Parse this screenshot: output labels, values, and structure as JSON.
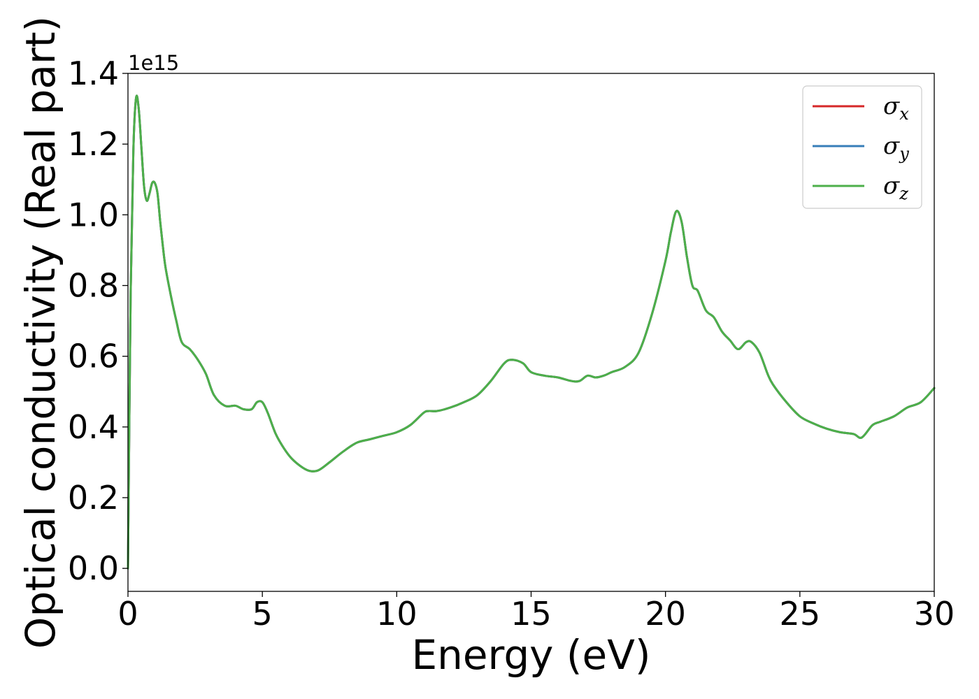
{
  "chart_data": {
    "type": "line",
    "title": "",
    "xlabel": "Energy (eV)",
    "ylabel": "Optical conductivity (Real part)",
    "y_offset_label": "1e15",
    "xlim": [
      0,
      30
    ],
    "ylim": [
      -0.065,
      1.4
    ],
    "xticks": [
      0,
      5,
      10,
      15,
      20,
      25,
      30
    ],
    "xtick_labels": [
      "0",
      "5",
      "10",
      "15",
      "20",
      "25",
      "30"
    ],
    "yticks": [
      0.0,
      0.2,
      0.4,
      0.6,
      0.8,
      1.0,
      1.2,
      1.4
    ],
    "ytick_labels": [
      "0.0",
      "0.2",
      "0.4",
      "0.6",
      "0.8",
      "1.0",
      "1.2",
      "1.4"
    ],
    "grid": false,
    "legend_position": "top-right",
    "series": [
      {
        "name": "σ",
        "subscript": "x",
        "color": "#d62728",
        "x": [
          0,
          0.1,
          0.2,
          0.3,
          0.4,
          0.5,
          0.6,
          0.7,
          0.8,
          0.9,
          1.0,
          1.1,
          1.2,
          1.3,
          1.4,
          1.6,
          1.8,
          2.0,
          2.3,
          2.6,
          2.9,
          3.2,
          3.6,
          4.0,
          4.3,
          4.6,
          4.8,
          5.0,
          5.2,
          5.5,
          5.8,
          6.1,
          6.5,
          6.8,
          7.1,
          7.5,
          8.0,
          8.5,
          9.0,
          9.5,
          10.0,
          10.5,
          11.0,
          11.2,
          11.5,
          12.0,
          12.5,
          13.0,
          13.5,
          14.0,
          14.3,
          14.7,
          15.0,
          15.5,
          16.0,
          16.5,
          16.8,
          17.1,
          17.4,
          17.7,
          18.0,
          18.5,
          19.0,
          19.5,
          20.0,
          20.2,
          20.4,
          20.6,
          20.8,
          21.0,
          21.2,
          21.5,
          21.8,
          22.1,
          22.4,
          22.7,
          23.0,
          23.2,
          23.5,
          23.8,
          24.0,
          24.5,
          25.0,
          25.5,
          26.0,
          26.5,
          27.0,
          27.3,
          27.7,
          28.0,
          28.5,
          29.0,
          29.5,
          30.0
        ],
        "y": [
          0.0,
          0.78,
          1.18,
          1.33,
          1.3,
          1.19,
          1.08,
          1.04,
          1.06,
          1.09,
          1.09,
          1.06,
          0.98,
          0.91,
          0.85,
          0.77,
          0.7,
          0.64,
          0.62,
          0.59,
          0.55,
          0.49,
          0.46,
          0.46,
          0.45,
          0.45,
          0.47,
          0.47,
          0.44,
          0.38,
          0.34,
          0.31,
          0.285,
          0.275,
          0.278,
          0.3,
          0.33,
          0.355,
          0.365,
          0.375,
          0.385,
          0.405,
          0.44,
          0.445,
          0.445,
          0.455,
          0.47,
          0.49,
          0.53,
          0.58,
          0.59,
          0.58,
          0.555,
          0.545,
          0.54,
          0.53,
          0.53,
          0.545,
          0.54,
          0.545,
          0.555,
          0.57,
          0.61,
          0.72,
          0.87,
          0.95,
          1.01,
          0.98,
          0.88,
          0.8,
          0.785,
          0.73,
          0.71,
          0.67,
          0.645,
          0.62,
          0.64,
          0.64,
          0.61,
          0.55,
          0.52,
          0.47,
          0.43,
          0.41,
          0.395,
          0.385,
          0.38,
          0.37,
          0.405,
          0.415,
          0.43,
          0.455,
          0.47,
          0.51
        ]
      },
      {
        "name": "σ",
        "subscript": "y",
        "color": "#377eb8",
        "x": [
          0,
          0.1,
          0.2,
          0.3,
          0.4,
          0.5,
          0.6,
          0.7,
          0.8,
          0.9,
          1.0,
          1.1,
          1.2,
          1.3,
          1.4,
          1.6,
          1.8,
          2.0,
          2.3,
          2.6,
          2.9,
          3.2,
          3.6,
          4.0,
          4.3,
          4.6,
          4.8,
          5.0,
          5.2,
          5.5,
          5.8,
          6.1,
          6.5,
          6.8,
          7.1,
          7.5,
          8.0,
          8.5,
          9.0,
          9.5,
          10.0,
          10.5,
          11.0,
          11.2,
          11.5,
          12.0,
          12.5,
          13.0,
          13.5,
          14.0,
          14.3,
          14.7,
          15.0,
          15.5,
          16.0,
          16.5,
          16.8,
          17.1,
          17.4,
          17.7,
          18.0,
          18.5,
          19.0,
          19.5,
          20.0,
          20.2,
          20.4,
          20.6,
          20.8,
          21.0,
          21.2,
          21.5,
          21.8,
          22.1,
          22.4,
          22.7,
          23.0,
          23.2,
          23.5,
          23.8,
          24.0,
          24.5,
          25.0,
          25.5,
          26.0,
          26.5,
          27.0,
          27.3,
          27.7,
          28.0,
          28.5,
          29.0,
          29.5,
          30.0
        ],
        "y": [
          0.0,
          0.78,
          1.18,
          1.33,
          1.3,
          1.19,
          1.08,
          1.04,
          1.06,
          1.09,
          1.09,
          1.06,
          0.98,
          0.91,
          0.85,
          0.77,
          0.7,
          0.64,
          0.62,
          0.59,
          0.55,
          0.49,
          0.46,
          0.46,
          0.45,
          0.45,
          0.47,
          0.47,
          0.44,
          0.38,
          0.34,
          0.31,
          0.285,
          0.275,
          0.278,
          0.3,
          0.33,
          0.355,
          0.365,
          0.375,
          0.385,
          0.405,
          0.44,
          0.445,
          0.445,
          0.455,
          0.47,
          0.49,
          0.53,
          0.58,
          0.59,
          0.58,
          0.555,
          0.545,
          0.54,
          0.53,
          0.53,
          0.545,
          0.54,
          0.545,
          0.555,
          0.57,
          0.61,
          0.72,
          0.87,
          0.95,
          1.01,
          0.98,
          0.88,
          0.8,
          0.785,
          0.73,
          0.71,
          0.67,
          0.645,
          0.62,
          0.64,
          0.64,
          0.61,
          0.55,
          0.52,
          0.47,
          0.43,
          0.41,
          0.395,
          0.385,
          0.38,
          0.37,
          0.405,
          0.415,
          0.43,
          0.455,
          0.47,
          0.51
        ]
      },
      {
        "name": "σ",
        "subscript": "z",
        "color": "#4daf4a",
        "x": [
          0,
          0.1,
          0.2,
          0.3,
          0.4,
          0.5,
          0.6,
          0.7,
          0.8,
          0.9,
          1.0,
          1.1,
          1.2,
          1.3,
          1.4,
          1.6,
          1.8,
          2.0,
          2.3,
          2.6,
          2.9,
          3.2,
          3.6,
          4.0,
          4.3,
          4.6,
          4.8,
          5.0,
          5.2,
          5.5,
          5.8,
          6.1,
          6.5,
          6.8,
          7.1,
          7.5,
          8.0,
          8.5,
          9.0,
          9.5,
          10.0,
          10.5,
          11.0,
          11.2,
          11.5,
          12.0,
          12.5,
          13.0,
          13.5,
          14.0,
          14.3,
          14.7,
          15.0,
          15.5,
          16.0,
          16.5,
          16.8,
          17.1,
          17.4,
          17.7,
          18.0,
          18.5,
          19.0,
          19.5,
          20.0,
          20.2,
          20.4,
          20.6,
          20.8,
          21.0,
          21.2,
          21.5,
          21.8,
          22.1,
          22.4,
          22.7,
          23.0,
          23.2,
          23.5,
          23.8,
          24.0,
          24.5,
          25.0,
          25.5,
          26.0,
          26.5,
          27.0,
          27.3,
          27.7,
          28.0,
          28.5,
          29.0,
          29.5,
          30.0
        ],
        "y": [
          0.0,
          0.78,
          1.18,
          1.33,
          1.3,
          1.19,
          1.08,
          1.04,
          1.06,
          1.09,
          1.09,
          1.06,
          0.98,
          0.91,
          0.85,
          0.77,
          0.7,
          0.64,
          0.62,
          0.59,
          0.55,
          0.49,
          0.46,
          0.46,
          0.45,
          0.45,
          0.47,
          0.47,
          0.44,
          0.38,
          0.34,
          0.31,
          0.285,
          0.275,
          0.278,
          0.3,
          0.33,
          0.355,
          0.365,
          0.375,
          0.385,
          0.405,
          0.44,
          0.445,
          0.445,
          0.455,
          0.47,
          0.49,
          0.53,
          0.58,
          0.59,
          0.58,
          0.555,
          0.545,
          0.54,
          0.53,
          0.53,
          0.545,
          0.54,
          0.545,
          0.555,
          0.57,
          0.61,
          0.72,
          0.87,
          0.95,
          1.01,
          0.98,
          0.88,
          0.8,
          0.785,
          0.73,
          0.71,
          0.67,
          0.645,
          0.62,
          0.64,
          0.64,
          0.61,
          0.55,
          0.52,
          0.47,
          0.43,
          0.41,
          0.395,
          0.385,
          0.38,
          0.37,
          0.405,
          0.415,
          0.43,
          0.455,
          0.47,
          0.51
        ]
      }
    ]
  }
}
